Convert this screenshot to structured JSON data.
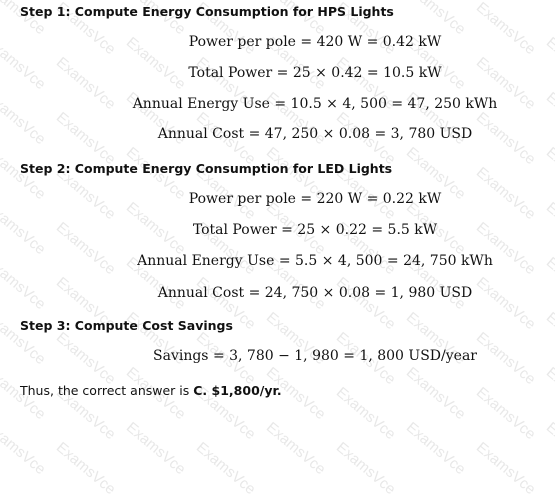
{
  "watermark": "ExamsVce",
  "steps": [
    {
      "heading": "Step 1: Compute Energy Consumption for HPS Lights",
      "equations": [
        "Power per pole = 420 W = 0.42 kW",
        "Total Power = 25 × 0.42 = 10.5 kW",
        "Annual Energy Use = 10.5 × 4, 500 = 47, 250 kWh",
        "Annual Cost = 47, 250 × 0.08 = 3, 780 USD"
      ]
    },
    {
      "heading": "Step 2: Compute Energy Consumption for LED Lights",
      "equations": [
        "Power per pole = 220 W = 0.22 kW",
        "Total Power = 25 × 0.22 = 5.5 kW",
        "Annual Energy Use = 5.5 × 4, 500 = 24, 750 kWh",
        "Annual Cost = 24, 750 × 0.08 = 1, 980 USD"
      ]
    },
    {
      "heading": "Step 3: Compute Cost Savings",
      "equations": [
        "Savings = 3, 780 − 1, 980 = 1, 800 USD/year"
      ]
    }
  ],
  "conclusion": {
    "text": "Thus, the correct answer is ",
    "answer": "C. $1,800/yr."
  }
}
